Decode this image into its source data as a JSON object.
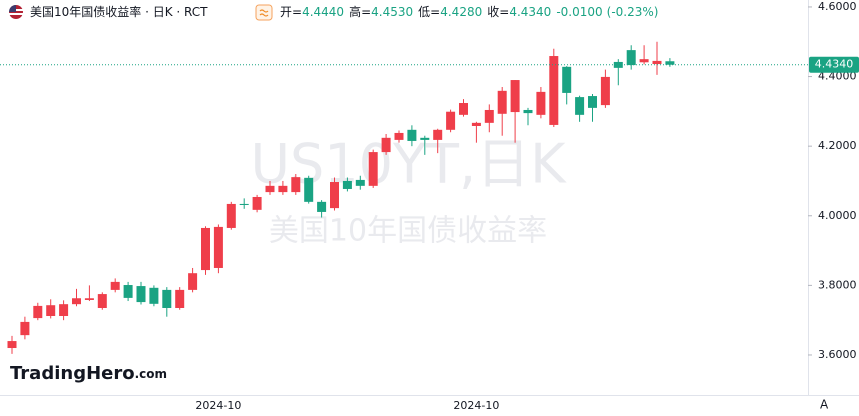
{
  "chart_data": {
    "type": "candlestick",
    "title": "美国10年国债收益率 · 日K · RCT",
    "header_stats": [
      {
        "name": "开",
        "value": 4.444,
        "label": "4.4440"
      },
      {
        "name": "高",
        "value": 4.453,
        "label": "4.4530"
      },
      {
        "name": "低",
        "value": 4.428,
        "label": "4.4280"
      },
      {
        "name": "收",
        "value": 4.434,
        "label": "4.4340"
      }
    ],
    "change": {
      "value": -0.01,
      "label": "-0.0100"
    },
    "change_pct": {
      "value": -0.23,
      "label": "(-0.23%)"
    },
    "watermark": [
      "US10YT,日K",
      "美国10年国债收益率"
    ],
    "logo": [
      "TradingHero",
      ".com"
    ],
    "auto_button": "A",
    "last_price": {
      "value": 4.434,
      "label": "4.4340"
    },
    "up_color": "#ef3e4a",
    "down_color": "#1aa383",
    "ylim": [
      3.485,
      4.62
    ],
    "yticks": [
      {
        "value": 3.6,
        "label": "3.6000"
      },
      {
        "value": 3.8,
        "label": "3.8000"
      },
      {
        "value": 4.0,
        "label": "4.0000"
      },
      {
        "value": 4.2,
        "label": "4.2000"
      },
      {
        "value": 4.4,
        "label": "4.4000"
      },
      {
        "value": 4.6,
        "label": "4.6000"
      }
    ],
    "categories": [
      null,
      null,
      null,
      null,
      null,
      null,
      null,
      null,
      null,
      null,
      null,
      null,
      null,
      null,
      null,
      null,
      "2024-10",
      null,
      null,
      null,
      null,
      null,
      null,
      null,
      null,
      null,
      null,
      null,
      null,
      null,
      null,
      null,
      null,
      null,
      null,
      null,
      "2024-10",
      null,
      null,
      null,
      null,
      null,
      null,
      null,
      null,
      null,
      null,
      null,
      null,
      null,
      null,
      null
    ],
    "open": [
      3.62,
      3.657,
      3.706,
      3.712,
      3.712,
      3.746,
      3.758,
      3.735,
      3.787,
      3.801,
      3.798,
      3.793,
      3.787,
      3.735,
      3.787,
      3.844,
      3.85,
      3.965,
      4.034,
      4.017,
      4.068,
      4.068,
      4.068,
      4.109,
      4.04,
      4.022,
      4.1,
      4.103,
      4.086,
      4.183,
      4.218,
      4.247,
      4.224,
      4.218,
      4.247,
      4.29,
      4.258,
      4.267,
      4.293,
      4.298,
      4.304,
      4.29,
      4.261,
      4.428,
      4.341,
      4.344,
      4.318,
      4.442,
      4.476,
      4.441,
      4.436,
      4.444
    ],
    "high": [
      3.655,
      3.71,
      3.75,
      3.76,
      3.757,
      3.79,
      3.8,
      3.78,
      3.82,
      3.81,
      3.81,
      3.8,
      3.795,
      3.795,
      3.85,
      3.97,
      3.975,
      4.04,
      4.05,
      4.06,
      4.1,
      4.1,
      4.12,
      4.115,
      4.045,
      4.11,
      4.11,
      4.115,
      4.19,
      4.235,
      4.245,
      4.26,
      4.23,
      4.25,
      4.305,
      4.335,
      4.27,
      4.32,
      4.37,
      4.39,
      4.31,
      4.37,
      4.48,
      4.43,
      4.345,
      4.35,
      4.42,
      4.45,
      4.49,
      4.49,
      4.5,
      4.453
    ],
    "low": [
      3.603,
      3.645,
      3.7,
      3.705,
      3.7,
      3.74,
      3.755,
      3.73,
      3.78,
      3.755,
      3.745,
      3.74,
      3.71,
      3.73,
      3.78,
      3.83,
      3.835,
      3.96,
      4.02,
      4.01,
      4.06,
      4.06,
      4.06,
      4.035,
      3.995,
      4.015,
      4.07,
      4.075,
      4.08,
      4.175,
      4.21,
      4.2,
      4.175,
      4.18,
      4.24,
      4.285,
      4.21,
      4.24,
      4.23,
      4.21,
      4.26,
      4.28,
      4.255,
      4.32,
      4.27,
      4.27,
      4.31,
      4.375,
      4.42,
      4.435,
      4.405,
      4.428
    ],
    "close": [
      3.64,
      3.695,
      3.741,
      3.743,
      3.746,
      3.763,
      3.763,
      3.775,
      3.81,
      3.764,
      3.752,
      3.747,
      3.735,
      3.787,
      3.835,
      3.965,
      3.968,
      4.034,
      4.031,
      4.054,
      4.086,
      4.086,
      4.111,
      4.04,
      4.011,
      4.097,
      4.077,
      4.086,
      4.183,
      4.224,
      4.238,
      4.215,
      4.218,
      4.247,
      4.299,
      4.324,
      4.267,
      4.304,
      4.359,
      4.39,
      4.295,
      4.356,
      4.459,
      4.353,
      4.29,
      4.31,
      4.399,
      4.425,
      4.433,
      4.45,
      4.445,
      4.434
    ]
  }
}
